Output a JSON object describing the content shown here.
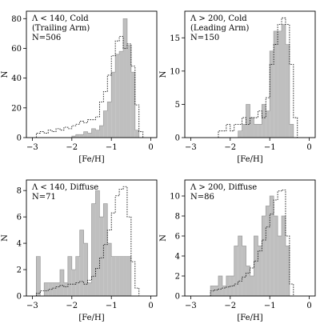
{
  "chart_data": [
    {
      "type": "histogram",
      "xlabel": "[Fe/H]",
      "ylabel": "N",
      "annotation": [
        "Λ < 140, Cold",
        "(Trailing Arm)",
        "N=506"
      ],
      "xlim": [
        -3.15,
        0.15
      ],
      "ylim": [
        0,
        85
      ],
      "xticks": [
        -3,
        -2,
        -1,
        0
      ],
      "yticks": [
        0,
        20,
        40,
        60,
        80
      ],
      "bin_edges": [
        -2.9,
        -2.8,
        -2.7,
        -2.6,
        -2.5,
        -2.4,
        -2.3,
        -2.2,
        -2.1,
        -2.0,
        -1.9,
        -1.8,
        -1.7,
        -1.6,
        -1.5,
        -1.4,
        -1.3,
        -1.2,
        -1.1,
        -1.0,
        -0.9,
        -0.8,
        -0.7,
        -0.6,
        -0.5,
        -0.4,
        -0.3,
        -0.2
      ],
      "filled": [
        0,
        0,
        0,
        0,
        0,
        0,
        0,
        0,
        0,
        1,
        2,
        2,
        4,
        3,
        6,
        5,
        8,
        18,
        24,
        44,
        56,
        58,
        80,
        62,
        44,
        5,
        0
      ],
      "outline": [
        3,
        4,
        3,
        5,
        4,
        6,
        5,
        7,
        6,
        8,
        9,
        11,
        10,
        12,
        12,
        14,
        24,
        31,
        42,
        55,
        65,
        68,
        60,
        63,
        48,
        22,
        4
      ]
    },
    {
      "type": "histogram",
      "xlabel": "[Fe/H]",
      "ylabel": "N",
      "annotation": [
        "Λ > 200, Cold",
        "(Leading Arm)",
        "N=150"
      ],
      "xlim": [
        -3.15,
        0.15
      ],
      "ylim": [
        0,
        19
      ],
      "xticks": [
        -3,
        -2,
        -1,
        0
      ],
      "yticks": [
        0,
        5,
        10,
        15
      ],
      "bin_edges": [
        -2.3,
        -2.2,
        -2.1,
        -2.0,
        -1.9,
        -1.8,
        -1.7,
        -1.6,
        -1.5,
        -1.4,
        -1.3,
        -1.2,
        -1.1,
        -1.0,
        -0.9,
        -0.8,
        -0.7,
        -0.6,
        -0.5,
        -0.4,
        -0.3
      ],
      "filled": [
        0,
        0,
        0,
        0,
        0,
        1,
        2,
        5,
        3,
        2,
        2,
        5,
        4,
        13,
        16,
        16,
        17,
        14,
        2,
        0
      ],
      "outline": [
        1,
        1,
        2,
        1,
        2,
        2,
        3,
        2,
        3,
        3,
        4,
        3,
        6,
        11,
        14,
        17,
        18,
        17,
        11,
        3
      ]
    },
    {
      "type": "histogram",
      "xlabel": "[Fe/H]",
      "ylabel": "N",
      "annotation": [
        "Λ < 140, Diffuse",
        "N=71"
      ],
      "xlim": [
        -3.15,
        0.15
      ],
      "ylim": [
        0,
        8.8
      ],
      "xticks": [
        -3,
        -2,
        -1,
        0
      ],
      "yticks": [
        0,
        2,
        4,
        6,
        8
      ],
      "bin_edges": [
        -2.9,
        -2.8,
        -2.7,
        -2.6,
        -2.5,
        -2.4,
        -2.3,
        -2.2,
        -2.1,
        -2.0,
        -1.9,
        -1.8,
        -1.7,
        -1.6,
        -1.5,
        -1.4,
        -1.3,
        -1.2,
        -1.1,
        -1.0,
        -0.9,
        -0.8,
        -0.7,
        -0.6,
        -0.5,
        -0.4,
        -0.3
      ],
      "filled": [
        3,
        0,
        1,
        1,
        1,
        1,
        2,
        1,
        3,
        2,
        3,
        5,
        4,
        1,
        7,
        8,
        6,
        7,
        4,
        3,
        3,
        3,
        3,
        3,
        0,
        0
      ],
      "outline": [
        0.2,
        0.4,
        0.4,
        0.5,
        0.6,
        0.7,
        0.8,
        0.7,
        0.9,
        0.9,
        1.0,
        1.1,
        0.9,
        1.2,
        1.5,
        2.1,
        2.9,
        3.9,
        5.0,
        6.3,
        7.6,
        8.1,
        8.3,
        6.0,
        2.6,
        0.6
      ]
    },
    {
      "type": "histogram",
      "xlabel": "[Fe/H]",
      "ylabel": "N",
      "annotation": [
        "Λ > 200, Diffuse",
        "N=86"
      ],
      "xlim": [
        -3.15,
        0.15
      ],
      "ylim": [
        0,
        11.6
      ],
      "xticks": [
        -3,
        -2,
        -1,
        0
      ],
      "yticks": [
        0,
        2,
        4,
        6,
        8,
        10
      ],
      "bin_edges": [
        -2.5,
        -2.4,
        -2.3,
        -2.2,
        -2.1,
        -2.0,
        -1.9,
        -1.8,
        -1.7,
        -1.6,
        -1.5,
        -1.4,
        -1.3,
        -1.2,
        -1.1,
        -1.0,
        -0.9,
        -0.8,
        -0.7,
        -0.6,
        -0.5,
        -0.4
      ],
      "filled": [
        1,
        1,
        2,
        1,
        2,
        2,
        5,
        6,
        5,
        3,
        2,
        6,
        5,
        8,
        9,
        10,
        8,
        6,
        8,
        5,
        0
      ],
      "outline": [
        0.5,
        0.6,
        0.7,
        0.8,
        0.9,
        1.0,
        1.2,
        1.5,
        1.9,
        2.3,
        2.8,
        3.5,
        4.5,
        5.6,
        6.9,
        8.2,
        9.6,
        10.5,
        10.6,
        6.0,
        1.2
      ]
    }
  ]
}
